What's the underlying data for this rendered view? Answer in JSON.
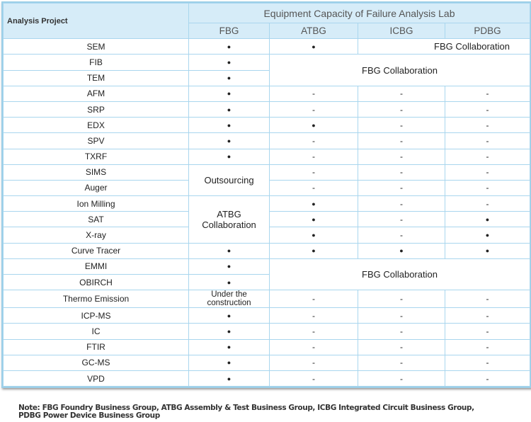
{
  "header": {
    "project": "Analysis Project",
    "title": "Equipment Capacity of Failure Analysis Lab",
    "groups": [
      "FBG",
      "ATBG",
      "ICBG",
      "PDBG"
    ]
  },
  "rows": [
    {
      "name": "SEM",
      "cells": [
        "●",
        "●",
        "FBG Collaboration"
      ]
    },
    {
      "name": "FIB",
      "cells": [
        "●",
        "FBG Collaboration"
      ]
    },
    {
      "name": "TEM",
      "cells": [
        "●"
      ]
    },
    {
      "name": "AFM",
      "cells": [
        "●",
        "-",
        "-",
        "-"
      ]
    },
    {
      "name": "SRP",
      "cells": [
        "●",
        "-",
        "-",
        "-"
      ]
    },
    {
      "name": "EDX",
      "cells": [
        "●",
        "●",
        "-",
        "-"
      ]
    },
    {
      "name": "SPV",
      "cells": [
        "●",
        "-",
        "-",
        "-"
      ]
    },
    {
      "name": "TXRF",
      "cells": [
        "●",
        "-",
        "-",
        "-"
      ]
    },
    {
      "name": "SIMS",
      "cells": [
        "Outsourcing",
        "-",
        "-",
        "-"
      ]
    },
    {
      "name": "Auger",
      "cells": [
        "-",
        "-",
        "-"
      ]
    },
    {
      "name": "Ion Milling",
      "cells": [
        "ATBG Collaboration",
        "●",
        "-",
        "-"
      ]
    },
    {
      "name": "SAT",
      "cells": [
        "●",
        "-",
        "●"
      ]
    },
    {
      "name": "X-ray",
      "cells": [
        "●",
        "-",
        "●"
      ]
    },
    {
      "name": "Curve Tracer",
      "cells": [
        "●",
        "●",
        "●",
        "●"
      ]
    },
    {
      "name": "EMMI",
      "cells": [
        "●",
        "FBG Collaboration"
      ]
    },
    {
      "name": "OBIRCH",
      "cells": [
        "●"
      ]
    },
    {
      "name": "Thermo Emission",
      "cells": [
        "Under the construction",
        "-",
        "-",
        "-"
      ]
    },
    {
      "name": "ICP-MS",
      "cells": [
        "●",
        "-",
        "-",
        "-"
      ]
    },
    {
      "name": "IC",
      "cells": [
        "●",
        "-",
        "-",
        "-"
      ]
    },
    {
      "name": "FTIR",
      "cells": [
        "●",
        "-",
        "-",
        "-"
      ]
    },
    {
      "name": "GC-MS",
      "cells": [
        "●",
        "-",
        "-",
        "-"
      ]
    },
    {
      "name": "VPD",
      "cells": [
        "●",
        "-",
        "-",
        "-"
      ]
    }
  ],
  "note": [
    "Note: FBG Foundry Business Group, ATBG Assembly & Test Business Group, ICBG Integrated Circuit Business Group,",
    "PDBG Power Device Business Group"
  ]
}
